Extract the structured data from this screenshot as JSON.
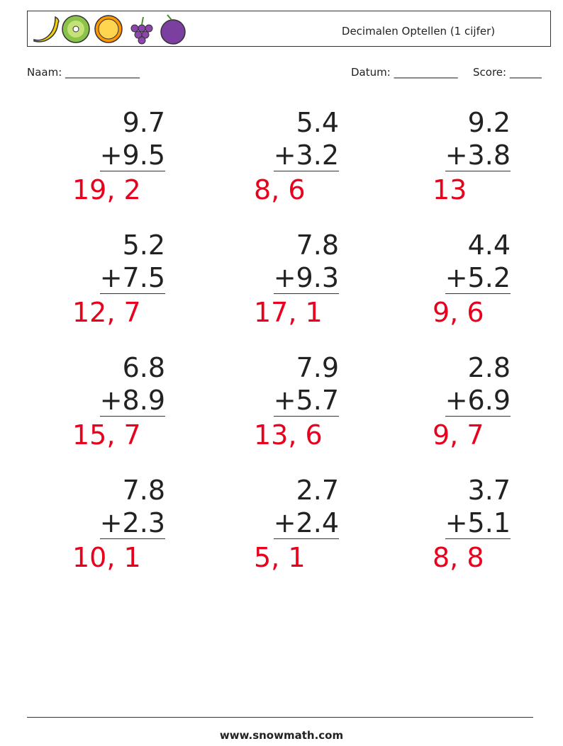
{
  "header": {
    "title": "Decimalen Optellen (1 cijfer)"
  },
  "fields": {
    "name": "Naam: ______________",
    "date": "Datum: ____________",
    "score": "Score: ______"
  },
  "problems": [
    {
      "top": "9.7",
      "bottom": "+9.5",
      "answer": "19, 2"
    },
    {
      "top": "5.4",
      "bottom": "+3.2",
      "answer": "8, 6"
    },
    {
      "top": "9.2",
      "bottom": "+3.8",
      "answer": "13"
    },
    {
      "top": "5.2",
      "bottom": "+7.5",
      "answer": "12, 7"
    },
    {
      "top": "7.8",
      "bottom": "+9.3",
      "answer": "17, 1"
    },
    {
      "top": "4.4",
      "bottom": "+5.2",
      "answer": "9, 6"
    },
    {
      "top": "6.8",
      "bottom": "+8.9",
      "answer": "15, 7"
    },
    {
      "top": "7.9",
      "bottom": "+5.7",
      "answer": "13, 6"
    },
    {
      "top": "2.8",
      "bottom": "+6.9",
      "answer": "9, 7"
    },
    {
      "top": "7.8",
      "bottom": "+2.3",
      "answer": "10, 1"
    },
    {
      "top": "2.7",
      "bottom": "+2.4",
      "answer": "5, 1"
    },
    {
      "top": "3.7",
      "bottom": "+5.1",
      "answer": "8, 8"
    }
  ],
  "footer": {
    "site": "www.snowmath.com"
  }
}
